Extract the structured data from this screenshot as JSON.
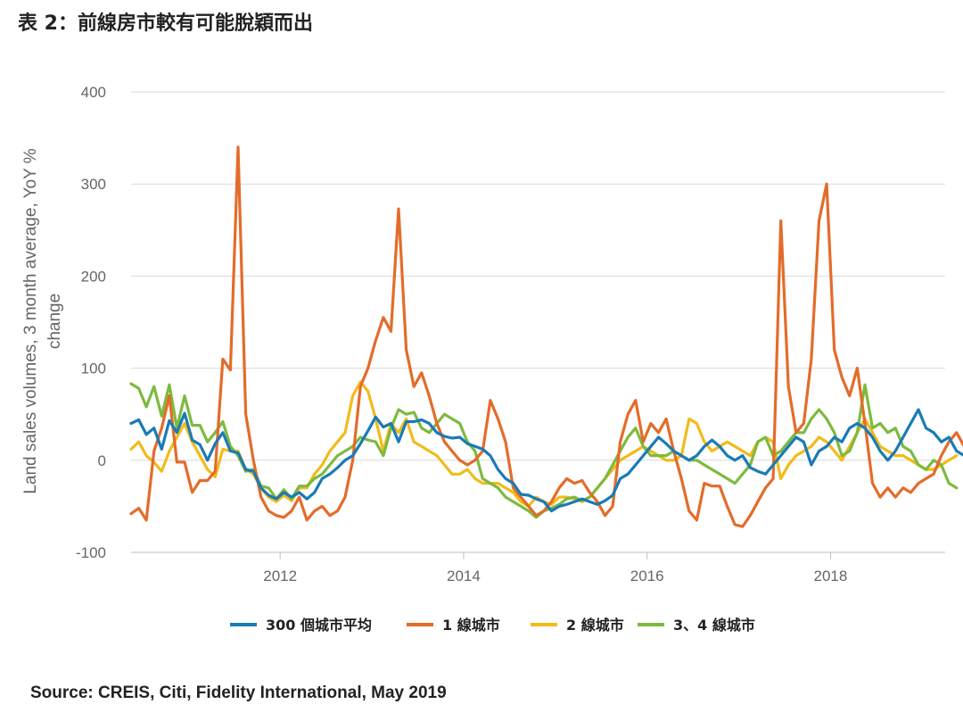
{
  "title": "表 2：前線房市較有可能脫穎而出",
  "source": "Source: CREIS, Citi, Fidelity International, May 2019",
  "chart_data": {
    "type": "line",
    "ylabel_line1": "Land sales volumes, 3 month average, YoY %",
    "ylabel_line2": "change",
    "ylim": [
      -100,
      400
    ],
    "yticks": [
      -100,
      0,
      100,
      200,
      300,
      400
    ],
    "xlim": [
      2010.375,
      2019.25
    ],
    "xticks": [
      2012,
      2014,
      2016,
      2018
    ],
    "grid": true,
    "legend_position": "bottom",
    "x_start": 2010.375,
    "x_step": 0.08333,
    "series": [
      {
        "name": "300 個城市平均",
        "color": "#1a7bb5",
        "values": [
          40,
          44,
          28,
          35,
          12,
          43,
          30,
          51,
          22,
          17,
          0,
          18,
          30,
          10,
          8,
          -10,
          -12,
          -30,
          -38,
          -42,
          -35,
          -40,
          -35,
          -42,
          -35,
          -20,
          -15,
          -8,
          0,
          5,
          18,
          32,
          47,
          36,
          40,
          20,
          42,
          42,
          44,
          40,
          30,
          26,
          24,
          25,
          18,
          15,
          12,
          5,
          -10,
          -20,
          -25,
          -37,
          -38,
          -42,
          -45,
          -55,
          -50,
          -48,
          -45,
          -42,
          -45,
          -48,
          -44,
          -38,
          -20,
          -15,
          -5,
          5,
          15,
          25,
          18,
          10,
          5,
          0,
          5,
          15,
          22,
          15,
          5,
          0,
          5,
          -8,
          -12,
          -15,
          -5,
          5,
          15,
          25,
          20,
          -5,
          10,
          15,
          25,
          20,
          35,
          40,
          35,
          25,
          10,
          0,
          10,
          25,
          40,
          55,
          35,
          30,
          20,
          25,
          10,
          5,
          -5,
          -10,
          -5,
          -5,
          -12,
          -13
        ]
      },
      {
        "name": "1 線城市",
        "color": "#e36c2a",
        "values": [
          -58,
          -52,
          -65,
          10,
          35,
          70,
          -2,
          -2,
          -35,
          -22,
          -22,
          -12,
          110,
          98,
          340,
          50,
          0,
          -40,
          -55,
          -60,
          -62,
          -55,
          -40,
          -65,
          -55,
          -50,
          -60,
          -55,
          -40,
          0,
          80,
          100,
          130,
          155,
          140,
          273,
          120,
          80,
          95,
          70,
          40,
          20,
          10,
          0,
          -5,
          0,
          10,
          65,
          45,
          20,
          -30,
          -40,
          -50,
          -60,
          -55,
          -45,
          -30,
          -20,
          -25,
          -22,
          -35,
          -45,
          -60,
          -50,
          20,
          50,
          65,
          20,
          40,
          30,
          45,
          10,
          -20,
          -55,
          -65,
          -25,
          -28,
          -28,
          -50,
          -70,
          -72,
          -60,
          -45,
          -30,
          -20,
          260,
          80,
          30,
          40,
          110,
          260,
          300,
          120,
          90,
          70,
          100,
          40,
          -25,
          -40,
          -30,
          -40,
          -30,
          -35,
          -25,
          -20,
          -15,
          5,
          20,
          30,
          15,
          27
        ]
      },
      {
        "name": "2 線城市",
        "color": "#f2bb1b",
        "values": [
          12,
          20,
          5,
          -2,
          -12,
          10,
          25,
          40,
          20,
          5,
          -10,
          -18,
          12,
          10,
          10,
          -10,
          -15,
          -30,
          -40,
          -45,
          -38,
          -44,
          -30,
          -30,
          -15,
          -5,
          10,
          20,
          30,
          70,
          85,
          75,
          45,
          10,
          40,
          30,
          45,
          20,
          15,
          10,
          5,
          -5,
          -15,
          -15,
          -10,
          -20,
          -25,
          -25,
          -25,
          -30,
          -35,
          -45,
          -50,
          -40,
          -45,
          -48,
          -40,
          -40,
          -42,
          -45,
          -40,
          -30,
          -20,
          -10,
          0,
          5,
          10,
          15,
          10,
          5,
          0,
          0,
          5,
          45,
          40,
          20,
          10,
          15,
          20,
          15,
          10,
          5,
          20,
          25,
          20,
          -20,
          -5,
          5,
          10,
          15,
          25,
          20,
          10,
          0,
          15,
          30,
          45,
          30,
          15,
          10,
          5,
          5,
          0,
          -5,
          -10,
          -10,
          -5,
          0,
          5
        ]
      },
      {
        "name": "3、4 線城市",
        "color": "#7dba3f",
        "values": [
          83,
          78,
          58,
          80,
          48,
          82,
          35,
          70,
          38,
          38,
          20,
          30,
          42,
          15,
          5,
          -12,
          -10,
          -28,
          -30,
          -42,
          -32,
          -42,
          -28,
          -28,
          -20,
          -15,
          -5,
          5,
          10,
          15,
          25,
          22,
          20,
          5,
          35,
          55,
          50,
          52,
          35,
          30,
          40,
          50,
          45,
          40,
          20,
          10,
          -20,
          -25,
          -30,
          -40,
          -45,
          -50,
          -55,
          -62,
          -55,
          -52,
          -48,
          -42,
          -40,
          -44,
          -40,
          -30,
          -20,
          -5,
          10,
          25,
          35,
          15,
          5,
          5,
          5,
          10,
          5,
          0,
          0,
          -5,
          -10,
          -15,
          -20,
          -25,
          -15,
          -5,
          20,
          25,
          5,
          10,
          20,
          30,
          30,
          45,
          55,
          45,
          30,
          5,
          10,
          30,
          82,
          35,
          40,
          30,
          35,
          15,
          10,
          -5,
          -10,
          0,
          -5,
          -25,
          -30
        ]
      }
    ]
  }
}
